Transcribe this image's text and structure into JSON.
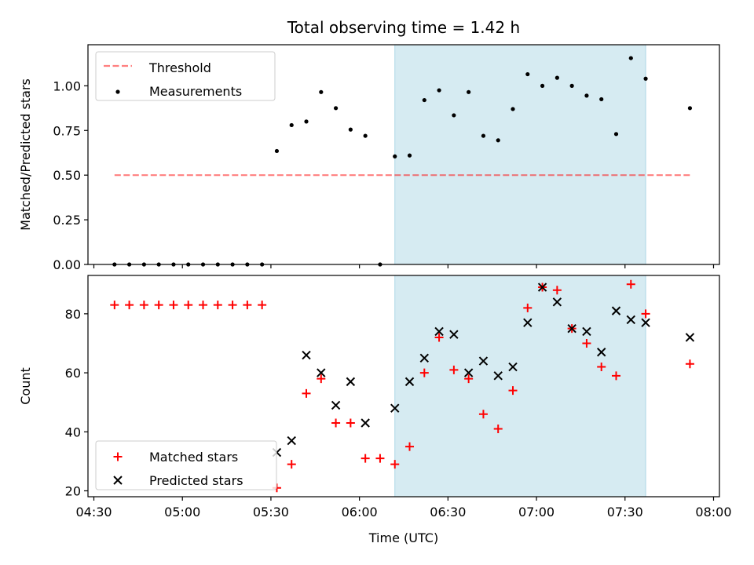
{
  "figure": {
    "title": "Total observing time = 1.42 h",
    "xlabel": "Time (UTC)",
    "colors": {
      "highlight": "#add8e6",
      "threshold": "#ff0000",
      "measurement": "#000000",
      "matched": "#ff0000",
      "predicted": "#000000"
    }
  },
  "chart_data": [
    {
      "type": "scatter",
      "panel": "top",
      "title": "Total observing time = 1.42 h",
      "xlabel": "",
      "ylabel": "Matched/Predicted stars",
      "xlim": [
        "04:28",
        "08:02"
      ],
      "ylim": [
        0,
        1.23
      ],
      "yticks": [
        0.0,
        0.25,
        0.5,
        0.75,
        1.0
      ],
      "ytick_labels": [
        "0.00",
        "0.25",
        "0.50",
        "0.75",
        "1.00"
      ],
      "highlight_span": [
        "06:12",
        "07:37"
      ],
      "legend": {
        "placement": "top-left",
        "entries": [
          "Threshold",
          "Measurements"
        ]
      },
      "series": [
        {
          "name": "Threshold",
          "kind": "dashed-line",
          "points": [
            {
              "x": "04:37",
              "y": 0.5
            },
            {
              "x": "07:52",
              "y": 0.5
            }
          ]
        },
        {
          "name": "Measurements",
          "kind": "dot",
          "points": [
            {
              "x": "04:37",
              "y": 0.0
            },
            {
              "x": "04:42",
              "y": 0.0
            },
            {
              "x": "04:47",
              "y": 0.0
            },
            {
              "x": "04:52",
              "y": 0.0
            },
            {
              "x": "04:57",
              "y": 0.0
            },
            {
              "x": "05:02",
              "y": 0.0
            },
            {
              "x": "05:07",
              "y": 0.0
            },
            {
              "x": "05:12",
              "y": 0.0
            },
            {
              "x": "05:17",
              "y": 0.0
            },
            {
              "x": "05:22",
              "y": 0.0
            },
            {
              "x": "05:27",
              "y": 0.0
            },
            {
              "x": "05:32",
              "y": 0.635
            },
            {
              "x": "05:37",
              "y": 0.78
            },
            {
              "x": "05:42",
              "y": 0.8
            },
            {
              "x": "05:47",
              "y": 0.965
            },
            {
              "x": "05:52",
              "y": 0.875
            },
            {
              "x": "05:57",
              "y": 0.755
            },
            {
              "x": "06:02",
              "y": 0.72
            },
            {
              "x": "06:07",
              "y": 0.0
            },
            {
              "x": "06:12",
              "y": 0.605
            },
            {
              "x": "06:17",
              "y": 0.61
            },
            {
              "x": "06:22",
              "y": 0.92
            },
            {
              "x": "06:27",
              "y": 0.975
            },
            {
              "x": "06:32",
              "y": 0.835
            },
            {
              "x": "06:37",
              "y": 0.965
            },
            {
              "x": "06:42",
              "y": 0.72
            },
            {
              "x": "06:47",
              "y": 0.695
            },
            {
              "x": "06:52",
              "y": 0.87
            },
            {
              "x": "06:57",
              "y": 1.065
            },
            {
              "x": "07:02",
              "y": 1.0
            },
            {
              "x": "07:07",
              "y": 1.045
            },
            {
              "x": "07:12",
              "y": 1.0
            },
            {
              "x": "07:17",
              "y": 0.945
            },
            {
              "x": "07:22",
              "y": 0.925
            },
            {
              "x": "07:27",
              "y": 0.73
            },
            {
              "x": "07:32",
              "y": 1.155
            },
            {
              "x": "07:37",
              "y": 1.04
            },
            {
              "x": "07:52",
              "y": 0.875
            }
          ]
        }
      ]
    },
    {
      "type": "scatter",
      "panel": "bottom",
      "xlabel": "Time (UTC)",
      "ylabel": "Count",
      "xlim": [
        "04:28",
        "08:02"
      ],
      "ylim": [
        18,
        93
      ],
      "yticks": [
        20,
        40,
        60,
        80
      ],
      "ytick_labels": [
        "20",
        "40",
        "60",
        "80"
      ],
      "xticks": [
        "04:30",
        "05:00",
        "05:30",
        "06:00",
        "06:30",
        "07:00",
        "07:30",
        "08:00"
      ],
      "xtick_labels": [
        "04:30",
        "05:00",
        "05:30",
        "06:00",
        "06:30",
        "07:00",
        "07:30",
        "08:00"
      ],
      "highlight_span": [
        "06:12",
        "07:37"
      ],
      "legend": {
        "placement": "bottom-left",
        "entries": [
          "Matched stars",
          "Predicted stars"
        ]
      },
      "series": [
        {
          "name": "Matched stars",
          "kind": "plus",
          "points": [
            {
              "x": "04:37",
              "y": 83
            },
            {
              "x": "04:42",
              "y": 83
            },
            {
              "x": "04:47",
              "y": 83
            },
            {
              "x": "04:52",
              "y": 83
            },
            {
              "x": "04:57",
              "y": 83
            },
            {
              "x": "05:02",
              "y": 83
            },
            {
              "x": "05:07",
              "y": 83
            },
            {
              "x": "05:12",
              "y": 83
            },
            {
              "x": "05:17",
              "y": 83
            },
            {
              "x": "05:22",
              "y": 83
            },
            {
              "x": "05:27",
              "y": 83
            },
            {
              "x": "05:32",
              "y": 21
            },
            {
              "x": "05:37",
              "y": 29
            },
            {
              "x": "05:42",
              "y": 53
            },
            {
              "x": "05:47",
              "y": 58
            },
            {
              "x": "05:52",
              "y": 43
            },
            {
              "x": "05:57",
              "y": 43
            },
            {
              "x": "06:02",
              "y": 31
            },
            {
              "x": "06:07",
              "y": 31
            },
            {
              "x": "06:12",
              "y": 29
            },
            {
              "x": "06:17",
              "y": 35
            },
            {
              "x": "06:22",
              "y": 60
            },
            {
              "x": "06:27",
              "y": 72
            },
            {
              "x": "06:32",
              "y": 61
            },
            {
              "x": "06:37",
              "y": 58
            },
            {
              "x": "06:42",
              "y": 46
            },
            {
              "x": "06:47",
              "y": 41
            },
            {
              "x": "06:52",
              "y": 54
            },
            {
              "x": "06:57",
              "y": 82
            },
            {
              "x": "07:02",
              "y": 89
            },
            {
              "x": "07:07",
              "y": 88
            },
            {
              "x": "07:12",
              "y": 75
            },
            {
              "x": "07:17",
              "y": 70
            },
            {
              "x": "07:22",
              "y": 62
            },
            {
              "x": "07:27",
              "y": 59
            },
            {
              "x": "07:32",
              "y": 90
            },
            {
              "x": "07:37",
              "y": 80
            },
            {
              "x": "07:52",
              "y": 63
            }
          ]
        },
        {
          "name": "Predicted stars",
          "kind": "x",
          "points": [
            {
              "x": "05:32",
              "y": 33
            },
            {
              "x": "05:37",
              "y": 37
            },
            {
              "x": "05:42",
              "y": 66
            },
            {
              "x": "05:47",
              "y": 60
            },
            {
              "x": "05:52",
              "y": 49
            },
            {
              "x": "05:57",
              "y": 57
            },
            {
              "x": "06:02",
              "y": 43
            },
            {
              "x": "06:12",
              "y": 48
            },
            {
              "x": "06:17",
              "y": 57
            },
            {
              "x": "06:22",
              "y": 65
            },
            {
              "x": "06:27",
              "y": 74
            },
            {
              "x": "06:32",
              "y": 73
            },
            {
              "x": "06:37",
              "y": 60
            },
            {
              "x": "06:42",
              "y": 64
            },
            {
              "x": "06:47",
              "y": 59
            },
            {
              "x": "06:52",
              "y": 62
            },
            {
              "x": "06:57",
              "y": 77
            },
            {
              "x": "07:02",
              "y": 89
            },
            {
              "x": "07:07",
              "y": 84
            },
            {
              "x": "07:12",
              "y": 75
            },
            {
              "x": "07:17",
              "y": 74
            },
            {
              "x": "07:22",
              "y": 67
            },
            {
              "x": "07:27",
              "y": 81
            },
            {
              "x": "07:32",
              "y": 78
            },
            {
              "x": "07:37",
              "y": 77
            },
            {
              "x": "07:52",
              "y": 72
            }
          ]
        }
      ]
    }
  ]
}
